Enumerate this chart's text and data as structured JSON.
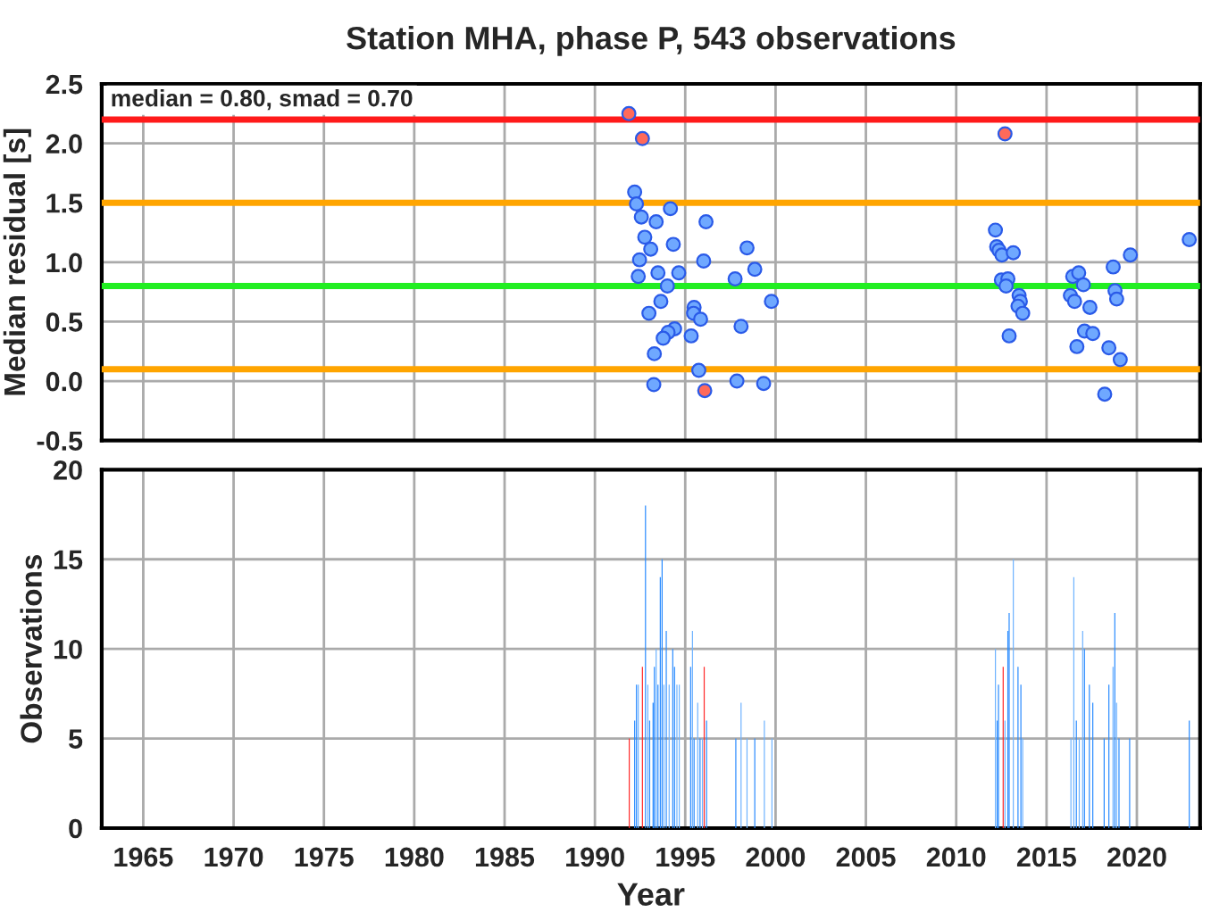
{
  "chart_data": [
    {
      "type": "scatter",
      "title": "Station MHA, phase P, 543 observations",
      "ylabel": "Median residual [s]",
      "annotations": [
        "median = 0.80, smad = 0.70"
      ],
      "series": [
        {
          "color": "#6fa8ff",
          "x": [
            1992.2,
            1992.3,
            1992.57,
            1993.39,
            1994.18,
            1996.15,
            1992.76,
            1993.09,
            1994.34,
            1998.42,
            1992.47,
            1996.02,
            1998.85,
            1992.4,
            1993.49,
            1994.64,
            1997.76,
            1994.01,
            1993.65,
            1999.77,
            1992.99,
            1995.49,
            1995.46,
            1995.85,
            1998.09,
            1994.41,
            1994.05,
            1993.78,
            1995.33,
            1993.29,
            1995.75,
            1993.26,
            1997.86,
            1999.34,
            2012.17,
            2012.24,
            2012.37,
            2012.53,
            2013.16,
            2012.5,
            2012.86,
            2012.76,
            2013.48,
            2013.55,
            2013.42,
            2013.68,
            2012.93,
            2016.45,
            2016.78,
            2017.04,
            2016.32,
            2016.55,
            2017.4,
            2017.1,
            2017.56,
            2016.68,
            2018.69,
            2019.64,
            2018.79,
            2018.88,
            2018.45,
            2019.08,
            2018.22,
            2022.9
          ],
          "values": [
            1.59,
            1.49,
            1.38,
            1.34,
            1.45,
            1.34,
            1.21,
            1.11,
            1.15,
            1.12,
            1.02,
            1.01,
            0.94,
            0.88,
            0.91,
            0.91,
            0.86,
            0.8,
            0.67,
            0.67,
            0.57,
            0.62,
            0.57,
            0.52,
            0.46,
            0.44,
            0.41,
            0.36,
            0.38,
            0.23,
            0.09,
            -0.03,
            0.0,
            -0.02,
            1.27,
            1.13,
            1.1,
            1.06,
            1.08,
            0.85,
            0.86,
            0.8,
            0.72,
            0.67,
            0.63,
            0.57,
            0.38,
            0.88,
            0.91,
            0.81,
            0.72,
            0.67,
            0.62,
            0.42,
            0.4,
            0.29,
            0.96,
            1.06,
            0.76,
            0.69,
            0.28,
            0.18,
            -0.11,
            1.19
          ]
        },
        {
          "color": "#ff6a5a",
          "x": [
            1991.88,
            1992.63,
            1996.08,
            2012.7
          ],
          "values": [
            2.25,
            2.04,
            -0.08,
            2.08
          ]
        }
      ],
      "marker": "circle",
      "ref_lines": [
        {
          "axis": "y",
          "value": 2.2,
          "color": "#ff1a1a"
        },
        {
          "axis": "y",
          "value": 1.5,
          "color": "#ffa500"
        },
        {
          "axis": "y",
          "value": 0.8,
          "color": "#22ee22"
        },
        {
          "axis": "y",
          "value": 0.1,
          "color": "#ffa500"
        }
      ],
      "xlim": [
        1962.7,
        2023.5
      ],
      "xticks": [
        1965,
        1970,
        1975,
        1980,
        1985,
        1990,
        1995,
        2000,
        2005,
        2010,
        2015,
        2020
      ],
      "ylim": [
        -0.5,
        2.5
      ],
      "yticks": [
        {
          "value": -0.5,
          "label": "-0.5"
        },
        {
          "value": 0,
          "label": "0.0"
        },
        {
          "value": 0.5,
          "label": "0.5"
        },
        {
          "value": 1,
          "label": "1.0"
        },
        {
          "value": 1.5,
          "label": "1.5"
        },
        {
          "value": 2,
          "label": "2.0"
        },
        {
          "value": 2.5,
          "label": "2.5"
        }
      ],
      "grid": true,
      "tick_labels": "y"
    },
    {
      "type": "bar",
      "xlabel": "Year",
      "ylabel": "Observations",
      "x": [
        1991.9,
        1992.2,
        1992.3,
        1992.4,
        1992.63,
        1992.8,
        1992.93,
        1993.03,
        1993.22,
        1993.29,
        1993.39,
        1993.49,
        1993.62,
        1993.72,
        1993.82,
        1993.95,
        1994.11,
        1994.31,
        1994.41,
        1994.54,
        1994.67,
        1995.3,
        1995.4,
        1995.49,
        1995.69,
        1995.82,
        1995.95,
        1996.05,
        1996.18,
        1997.8,
        1998.09,
        1998.42,
        1998.85,
        1999.38,
        1999.8,
        2012.17,
        2012.27,
        2012.34,
        2012.6,
        2012.7,
        2012.86,
        2012.93,
        2013.16,
        2013.42,
        2013.58,
        2013.68,
        2016.35,
        2016.51,
        2016.65,
        2016.81,
        2017.0,
        2017.1,
        2017.37,
        2017.56,
        2018.19,
        2018.45,
        2018.68,
        2018.78,
        2018.88,
        2019.01,
        2019.6,
        2022.9
      ],
      "values": [
        5,
        6,
        8,
        8,
        9,
        18,
        8,
        6,
        7,
        9,
        10,
        8,
        14,
        15,
        8,
        11,
        8,
        10,
        9,
        8,
        8,
        9,
        11,
        5,
        7,
        5,
        5,
        9,
        6,
        5,
        7,
        5,
        5,
        6,
        5,
        10,
        6,
        8,
        9,
        6,
        11,
        12,
        15,
        9,
        8,
        5,
        5,
        14,
        6,
        5,
        11,
        10,
        8,
        7,
        5,
        8,
        9,
        12,
        7,
        5,
        5,
        6
      ],
      "colors": [
        "#ff2a2a",
        "#2b8cff",
        "#2b8cff",
        "#6fb3ff",
        "#ff2a2a",
        "#2b8cff",
        "#6fb3ff",
        "#2b8cff",
        "#2b8cff",
        "#2b8cff",
        "#6fb3ff",
        "#2b8cff",
        "#2b8cff",
        "#2b8cff",
        "#6fb3ff",
        "#2b8cff",
        "#6fb3ff",
        "#2b8cff",
        "#2b8cff",
        "#6fb3ff",
        "#6fb3ff",
        "#2b8cff",
        "#6fb3ff",
        "#2b8cff",
        "#6fb3ff",
        "#2b8cff",
        "#6fb3ff",
        "#ff2a2a",
        "#2b8cff",
        "#2b8cff",
        "#6fb3ff",
        "#6fb3ff",
        "#2b8cff",
        "#6fb3ff",
        "#6fb3ff",
        "#6fb3ff",
        "#2b8cff",
        "#2b8cff",
        "#ff2a2a",
        "#6fb3ff",
        "#2b8cff",
        "#2b8cff",
        "#6fb3ff",
        "#2b8cff",
        "#2b8cff",
        "#6fb3ff",
        "#6fb3ff",
        "#6fb3ff",
        "#2b8cff",
        "#6fb3ff",
        "#6fb3ff",
        "#2b8cff",
        "#2b8cff",
        "#2b8cff",
        "#2b8cff",
        "#2b8cff",
        "#6fb3ff",
        "#2b8cff",
        "#6fb3ff",
        "#2b8cff",
        "#2b8cff",
        "#2b8cff"
      ],
      "xlim": [
        1962.7,
        2023.5
      ],
      "xticks": [
        1965,
        1970,
        1975,
        1980,
        1985,
        1990,
        1995,
        2000,
        2005,
        2010,
        2015,
        2020
      ],
      "ylim": [
        0,
        20
      ],
      "yticks": [
        0,
        5,
        10,
        15,
        20
      ],
      "grid": true
    }
  ]
}
